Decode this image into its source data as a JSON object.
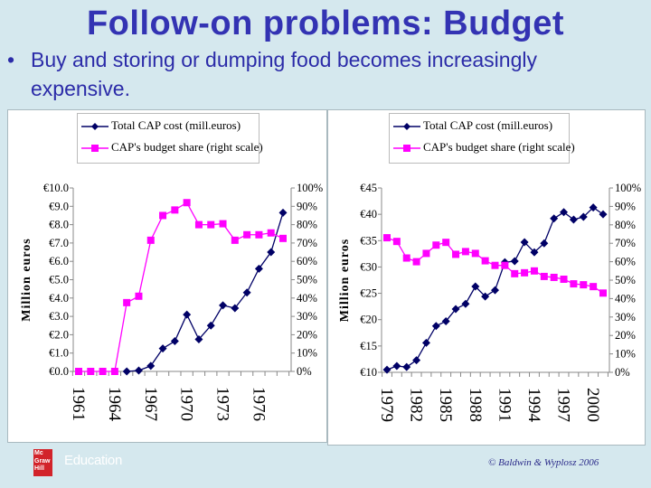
{
  "slide": {
    "title": "Follow-on problems: Budget",
    "bullet": "Buy and storing or dumping food becomes increasingly expensive.",
    "bullet_marker": "•",
    "logo_text": "Mc Graw Hill",
    "logo_word": "Education",
    "copyright": "© Baldwin & Wyplosz 2006"
  },
  "colors": {
    "cost": "#000066",
    "share": "#ff00ff",
    "title": "#3333b3",
    "background": "#d5e8ee"
  },
  "chart_data": [
    {
      "type": "line",
      "ylabel": "Million euros",
      "y_ticks": [
        "€0.0",
        "€1.0",
        "€2.0",
        "€3.0",
        "€4.0",
        "€5.0",
        "€6.0",
        "€7.0",
        "€8.0",
        "€9.0",
        "€10.0"
      ],
      "ylim": [
        0,
        10
      ],
      "y2_ticks": [
        "0%",
        "10%",
        "20%",
        "30%",
        "40%",
        "50%",
        "60%",
        "70%",
        "80%",
        "90%",
        "100%"
      ],
      "y2lim": [
        0,
        100
      ],
      "x_tick_labels": [
        "1961",
        "1964",
        "1967",
        "1970",
        "1973",
        "1976"
      ],
      "x": [
        1961,
        1962,
        1963,
        1964,
        1965,
        1966,
        1967,
        1968,
        1969,
        1970,
        1971,
        1972,
        1973,
        1974,
        1975,
        1976,
        1977,
        1978
      ],
      "legend_placement": "top",
      "series": [
        {
          "name": "Total CAP cost (mill.euros)",
          "axis": "left",
          "marker": "diamond",
          "values": [
            null,
            null,
            null,
            null,
            0.0,
            0.05,
            0.3,
            1.25,
            1.65,
            3.1,
            1.75,
            2.5,
            3.6,
            3.45,
            4.3,
            5.6,
            6.5,
            8.65
          ]
        },
        {
          "name": "CAP's budget share (right scale)",
          "axis": "right",
          "marker": "square",
          "values": [
            0,
            0,
            0,
            0,
            37.5,
            41,
            71.5,
            85,
            88,
            92,
            80,
            80,
            80.5,
            71.5,
            74.5,
            74.5,
            75.5,
            72.5
          ]
        }
      ]
    },
    {
      "type": "line",
      "ylabel": "Million euros",
      "y_ticks": [
        "€10",
        "€15",
        "€20",
        "€25",
        "€30",
        "€35",
        "€40",
        "€45"
      ],
      "ylim": [
        10,
        45
      ],
      "y2_ticks": [
        "0%",
        "10%",
        "20%",
        "30%",
        "40%",
        "50%",
        "60%",
        "70%",
        "80%",
        "90%",
        "100%"
      ],
      "y2lim": [
        0,
        100
      ],
      "x_tick_labels": [
        "1979",
        "1982",
        "1985",
        "1988",
        "1991",
        "1994",
        "1997",
        "2000"
      ],
      "x": [
        1979,
        1980,
        1981,
        1982,
        1983,
        1984,
        1985,
        1986,
        1987,
        1988,
        1989,
        1990,
        1991,
        1992,
        1993,
        1994,
        1995,
        1996,
        1997,
        1998,
        1999,
        2000,
        2001
      ],
      "legend_placement": "top",
      "series": [
        {
          "name": "Total CAP cost (mill.euros)",
          "axis": "left",
          "marker": "diamond",
          "values": [
            10.5,
            11.2,
            11.0,
            12.3,
            15.6,
            18.8,
            19.7,
            22.0,
            23.0,
            26.3,
            24.4,
            25.6,
            30.9,
            31.1,
            34.7,
            32.8,
            34.5,
            39.2,
            40.4,
            39.0,
            39.5,
            41.3,
            40.0
          ]
        },
        {
          "name": "CAP's budget share (right scale)",
          "axis": "right",
          "marker": "square",
          "values": [
            73,
            71,
            62,
            60,
            64.5,
            69,
            70.5,
            64,
            65.5,
            64.5,
            60.5,
            58,
            58,
            53.5,
            54,
            55,
            52,
            51.5,
            50.5,
            48,
            47.5,
            46.5,
            43
          ]
        }
      ]
    }
  ]
}
